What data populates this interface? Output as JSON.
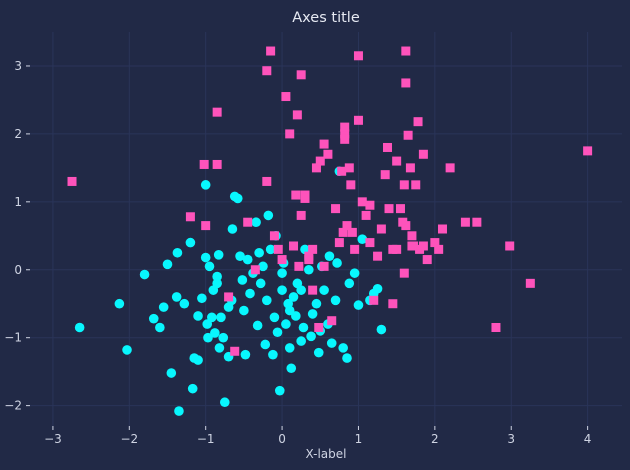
{
  "chart_data": {
    "type": "scatter",
    "title": "Axes title",
    "xlabel": "X-label",
    "ylabel": "",
    "xlim": [
      -3.3,
      4.45
    ],
    "ylim": [
      -2.3,
      3.5
    ],
    "xticks": [
      -3,
      -2,
      -1,
      0,
      1,
      2,
      3,
      4
    ],
    "yticks": [
      -2,
      -1,
      0,
      1,
      2,
      3
    ],
    "grid": true,
    "colors": {
      "background": "#212946",
      "grid": "#2a3459",
      "text": "#cfd4e3",
      "series_cyan": "#08f7fe",
      "series_pink": "#fe53bb"
    },
    "series": [
      {
        "marker": "circle",
        "color": "#08f7fe",
        "points": [
          [
            -2.65,
            -0.85
          ],
          [
            -2.13,
            -0.5
          ],
          [
            -2.03,
            -1.18
          ],
          [
            -1.8,
            -0.07
          ],
          [
            -1.68,
            -0.72
          ],
          [
            -1.6,
            -0.85
          ],
          [
            -1.55,
            -0.55
          ],
          [
            -1.5,
            0.08
          ],
          [
            -1.45,
            -1.52
          ],
          [
            -1.38,
            -0.4
          ],
          [
            -1.37,
            0.25
          ],
          [
            -1.35,
            -2.08
          ],
          [
            -1.28,
            -0.5
          ],
          [
            -1.2,
            0.4
          ],
          [
            -1.17,
            -1.75
          ],
          [
            -1.15,
            -1.3
          ],
          [
            -1.1,
            -1.33
          ],
          [
            -1.1,
            -0.68
          ],
          [
            -1.05,
            -0.42
          ],
          [
            -1.0,
            0.18
          ],
          [
            -0.98,
            -0.8
          ],
          [
            -0.97,
            -1.0
          ],
          [
            -0.95,
            0.05
          ],
          [
            -0.92,
            -0.7
          ],
          [
            -0.9,
            -0.3
          ],
          [
            -0.88,
            -0.93
          ],
          [
            -0.85,
            -0.1
          ],
          [
            -0.83,
            0.22
          ],
          [
            -0.82,
            -1.15
          ],
          [
            -0.8,
            -0.7
          ],
          [
            -0.77,
            -1.0
          ],
          [
            -0.75,
            -1.95
          ],
          [
            -0.7,
            -1.28
          ],
          [
            -0.7,
            -0.55
          ],
          [
            -0.66,
            -0.45
          ],
          [
            -0.62,
            1.08
          ],
          [
            -0.58,
            1.05
          ],
          [
            -0.55,
            0.2
          ],
          [
            -0.52,
            -0.15
          ],
          [
            -0.5,
            -0.6
          ],
          [
            -0.48,
            -1.25
          ],
          [
            -0.42,
            -0.35
          ],
          [
            -0.38,
            -0.05
          ],
          [
            -0.34,
            0.7
          ],
          [
            -0.32,
            -0.82
          ],
          [
            -0.3,
            0.25
          ],
          [
            -0.28,
            -0.2
          ],
          [
            -0.25,
            0.05
          ],
          [
            -0.22,
            -1.1
          ],
          [
            -0.2,
            -0.45
          ],
          [
            -0.18,
            0.8
          ],
          [
            -0.15,
            0.3
          ],
          [
            -0.12,
            -1.25
          ],
          [
            -0.1,
            -0.7
          ],
          [
            -0.08,
            0.5
          ],
          [
            -0.06,
            -0.92
          ],
          [
            -0.03,
            -1.78
          ],
          [
            0.0,
            -0.3
          ],
          [
            0.02,
            0.1
          ],
          [
            0.05,
            -0.8
          ],
          [
            0.08,
            -0.5
          ],
          [
            0.1,
            -1.15
          ],
          [
            0.12,
            -1.45
          ],
          [
            0.15,
            -0.4
          ],
          [
            0.18,
            -0.68
          ],
          [
            0.2,
            -0.2
          ],
          [
            0.25,
            -1.05
          ],
          [
            0.28,
            -0.85
          ],
          [
            0.3,
            0.3
          ],
          [
            0.35,
            0.0
          ],
          [
            0.4,
            -0.65
          ],
          [
            0.45,
            -0.5
          ],
          [
            0.48,
            -1.22
          ],
          [
            0.5,
            -0.9
          ],
          [
            0.52,
            0.05
          ],
          [
            0.55,
            -0.3
          ],
          [
            0.6,
            -0.8
          ],
          [
            0.62,
            0.2
          ],
          [
            0.65,
            -1.08
          ],
          [
            0.7,
            -0.45
          ],
          [
            0.72,
            0.1
          ],
          [
            0.75,
            1.45
          ],
          [
            0.8,
            -1.15
          ],
          [
            0.85,
            -1.3
          ],
          [
            0.88,
            -0.2
          ],
          [
            0.95,
            -0.05
          ],
          [
            1.0,
            -0.52
          ],
          [
            1.05,
            0.45
          ],
          [
            1.15,
            -0.45
          ],
          [
            1.2,
            -0.35
          ],
          [
            1.25,
            -0.28
          ],
          [
            1.3,
            -0.88
          ],
          [
            0.25,
            -0.3
          ],
          [
            -1.0,
            1.25
          ],
          [
            -0.65,
            0.6
          ],
          [
            0.1,
            -0.6
          ],
          [
            -0.45,
            0.15
          ],
          [
            0.38,
            -0.98
          ],
          [
            -0.85,
            -0.2
          ],
          [
            0.0,
            -0.05
          ]
        ]
      },
      {
        "marker": "square",
        "color": "#fe53bb",
        "points": [
          [
            -2.75,
            1.3
          ],
          [
            -1.2,
            0.78
          ],
          [
            -1.02,
            1.55
          ],
          [
            -1.0,
            0.65
          ],
          [
            -0.85,
            2.32
          ],
          [
            -0.85,
            1.55
          ],
          [
            -0.7,
            -0.4
          ],
          [
            -0.62,
            -1.2
          ],
          [
            -0.45,
            0.7
          ],
          [
            -0.35,
            0.0
          ],
          [
            -0.2,
            1.3
          ],
          [
            -0.2,
            2.93
          ],
          [
            -0.15,
            3.22
          ],
          [
            -0.1,
            0.5
          ],
          [
            -0.05,
            0.3
          ],
          [
            0.0,
            0.15
          ],
          [
            0.05,
            2.55
          ],
          [
            0.1,
            2.0
          ],
          [
            0.15,
            0.35
          ],
          [
            0.18,
            1.1
          ],
          [
            0.2,
            2.28
          ],
          [
            0.22,
            0.05
          ],
          [
            0.25,
            2.87
          ],
          [
            0.25,
            0.8
          ],
          [
            0.3,
            1.1
          ],
          [
            0.35,
            0.2
          ],
          [
            0.4,
            -0.3
          ],
          [
            0.45,
            1.5
          ],
          [
            0.48,
            -0.85
          ],
          [
            0.5,
            1.6
          ],
          [
            0.55,
            1.85
          ],
          [
            0.55,
            0.05
          ],
          [
            0.6,
            1.7
          ],
          [
            0.65,
            -0.75
          ],
          [
            0.7,
            0.9
          ],
          [
            0.75,
            0.4
          ],
          [
            0.78,
            1.45
          ],
          [
            0.8,
            0.55
          ],
          [
            0.82,
            2.0
          ],
          [
            0.82,
            2.1
          ],
          [
            0.85,
            0.65
          ],
          [
            0.88,
            1.5
          ],
          [
            0.9,
            1.25
          ],
          [
            0.92,
            0.55
          ],
          [
            0.95,
            0.3
          ],
          [
            1.0,
            3.15
          ],
          [
            1.0,
            2.2
          ],
          [
            1.05,
            1.0
          ],
          [
            1.1,
            0.8
          ],
          [
            1.15,
            0.4
          ],
          [
            1.2,
            -0.45
          ],
          [
            1.25,
            0.2
          ],
          [
            1.3,
            0.6
          ],
          [
            1.35,
            1.4
          ],
          [
            1.4,
            0.9
          ],
          [
            1.45,
            0.3
          ],
          [
            1.5,
            1.6
          ],
          [
            1.55,
            0.9
          ],
          [
            1.58,
            0.7
          ],
          [
            1.6,
            1.25
          ],
          [
            1.6,
            -0.05
          ],
          [
            1.62,
            3.22
          ],
          [
            1.65,
            1.98
          ],
          [
            1.68,
            1.5
          ],
          [
            1.7,
            0.5
          ],
          [
            1.72,
            0.35
          ],
          [
            1.75,
            1.25
          ],
          [
            1.78,
            2.18
          ],
          [
            1.8,
            0.3
          ],
          [
            1.85,
            1.7
          ],
          [
            1.9,
            0.15
          ],
          [
            2.0,
            0.4
          ],
          [
            2.05,
            0.3
          ],
          [
            2.1,
            0.6
          ],
          [
            2.2,
            1.5
          ],
          [
            2.4,
            0.7
          ],
          [
            2.55,
            0.7
          ],
          [
            2.8,
            -0.85
          ],
          [
            2.98,
            0.35
          ],
          [
            3.25,
            -0.2
          ],
          [
            4.0,
            1.75
          ],
          [
            1.62,
            2.75
          ],
          [
            0.82,
            1.92
          ],
          [
            1.38,
            1.8
          ],
          [
            0.3,
            1.05
          ],
          [
            1.15,
            0.95
          ],
          [
            0.35,
            0.15
          ],
          [
            1.5,
            0.3
          ],
          [
            1.7,
            0.35
          ],
          [
            1.45,
            -0.5
          ],
          [
            1.85,
            0.35
          ],
          [
            0.4,
            0.3
          ],
          [
            1.62,
            0.65
          ]
        ]
      }
    ]
  }
}
